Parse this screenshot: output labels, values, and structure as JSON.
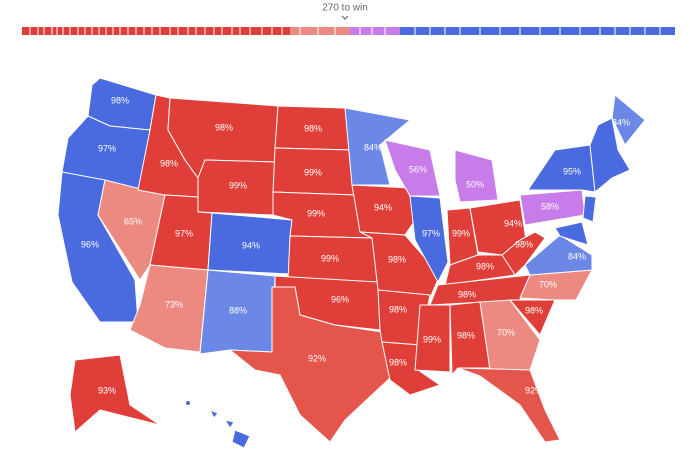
{
  "header": {
    "label": "270 to win"
  },
  "states": [
    {
      "label": "98%",
      "color": "#4a6ae0"
    },
    {
      "label": "97%",
      "color": "#4a6ae0"
    },
    {
      "label": "96%",
      "color": "#4a6ae0"
    },
    {
      "label": "65%",
      "color": "#ec8a82"
    },
    {
      "label": "98%",
      "color": "#df3f38"
    },
    {
      "label": "98%",
      "color": "#df3f38"
    },
    {
      "label": "99%",
      "color": "#df3f38"
    },
    {
      "label": "97%",
      "color": "#df3f38"
    },
    {
      "label": "73%",
      "color": "#ec8a82"
    },
    {
      "label": "94%",
      "color": "#4a6ae0"
    },
    {
      "label": "88%",
      "color": "#6c88e6"
    },
    {
      "label": "98%",
      "color": "#df3f38"
    },
    {
      "label": "99%",
      "color": "#df3f38"
    },
    {
      "label": "99%",
      "color": "#df3f38"
    },
    {
      "label": "99%",
      "color": "#df3f38"
    },
    {
      "label": "96%",
      "color": "#df3f38"
    },
    {
      "label": "92%",
      "color": "#e4554b"
    },
    {
      "label": "84%",
      "color": "#6c88e6"
    },
    {
      "label": "94%",
      "color": "#df3f38"
    },
    {
      "label": "98%",
      "color": "#df3f38"
    },
    {
      "label": "98%",
      "color": "#df3f38"
    },
    {
      "label": "98%",
      "color": "#df3f38"
    },
    {
      "label": "56%",
      "color": "#c77ce9"
    },
    {
      "label": "97%",
      "color": "#4a6ae0"
    },
    {
      "label": "50%",
      "color": "#c77ce9"
    },
    {
      "label": "99%",
      "color": "#df3f38"
    },
    {
      "label": "94%",
      "color": "#df3f38"
    },
    {
      "label": "98%",
      "color": "#df3f38"
    },
    {
      "label": "98%",
      "color": "#df3f38"
    },
    {
      "label": "99%",
      "color": "#df3f38"
    },
    {
      "label": "98%",
      "color": "#df3f38"
    },
    {
      "label": "70%",
      "color": "#ec8a82"
    },
    {
      "label": "92%",
      "color": "#e4554b"
    },
    {
      "label": "98%",
      "color": "#df3f38"
    },
    {
      "label": "70%",
      "color": "#ec8a82"
    },
    {
      "label": "84%",
      "color": "#6c88e6"
    },
    {
      "label": "98%",
      "color": "#df3f38"
    },
    {
      "label": "58%",
      "color": "#c77ce9"
    },
    {
      "label": "95%",
      "color": "#4a6ae0"
    },
    {
      "label": "84%",
      "color": "#6c88e6"
    },
    {
      "label": "93%",
      "color": "#df3f38"
    }
  ]
}
